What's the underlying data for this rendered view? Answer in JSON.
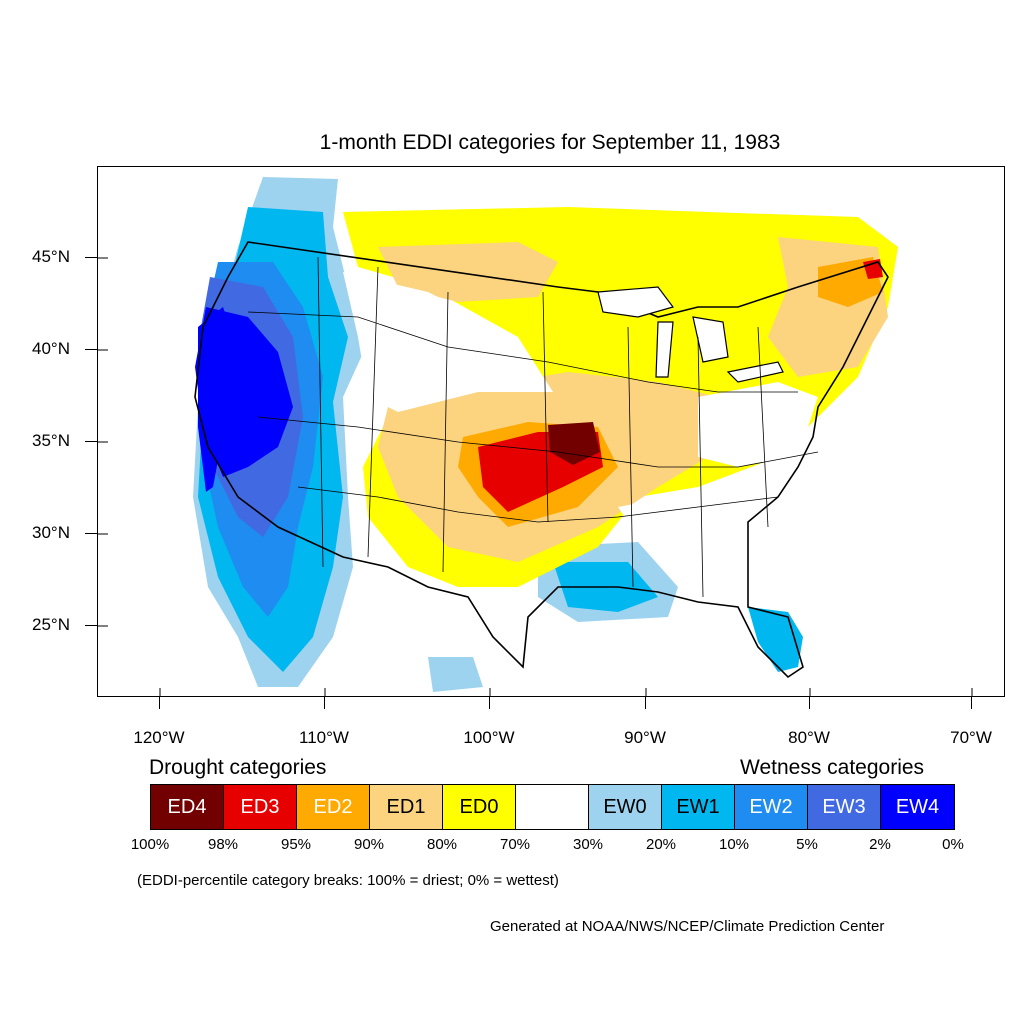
{
  "title": "1-month EDDI categories for September 11, 1983",
  "latitude_labels": [
    "45°N",
    "40°N",
    "35°N",
    "30°N",
    "25°N"
  ],
  "longitude_labels": [
    "120°W",
    "110°W",
    "100°W",
    "90°W",
    "80°W",
    "70°W"
  ],
  "legend": {
    "drought_heading": "Drought categories",
    "wetness_heading": "Wetness categories",
    "categories": [
      {
        "label": "ED4",
        "color": "#730000",
        "text_color": "#ffffff"
      },
      {
        "label": "ED3",
        "color": "#e60000",
        "text_color": "#ffffff"
      },
      {
        "label": "ED2",
        "color": "#ffaa00",
        "text_color": "#ffffff"
      },
      {
        "label": "ED1",
        "color": "#fcd37f",
        "text_color": "#000000"
      },
      {
        "label": "ED0",
        "color": "#ffff00",
        "text_color": "#000000"
      },
      {
        "label": "",
        "color": "#ffffff",
        "text_color": "#000000"
      },
      {
        "label": "EW0",
        "color": "#9ed3f0",
        "text_color": "#000000"
      },
      {
        "label": "EW1",
        "color": "#00b7f0",
        "text_color": "#000000"
      },
      {
        "label": "EW2",
        "color": "#1e8cf0",
        "text_color": "#ffffff"
      },
      {
        "label": "EW3",
        "color": "#4169e1",
        "text_color": "#ffffff"
      },
      {
        "label": "EW4",
        "color": "#0000ff",
        "text_color": "#ffffff"
      }
    ],
    "percentiles": [
      "100%",
      "98%",
      "95%",
      "90%",
      "80%",
      "70%",
      "30%",
      "20%",
      "10%",
      "5%",
      "2%",
      "0%"
    ]
  },
  "note": "(EDDI-percentile category breaks: 100% = driest; 0% = wettest)",
  "credit": "Generated at NOAA/NWS/NCEP/Climate Prediction Center"
}
